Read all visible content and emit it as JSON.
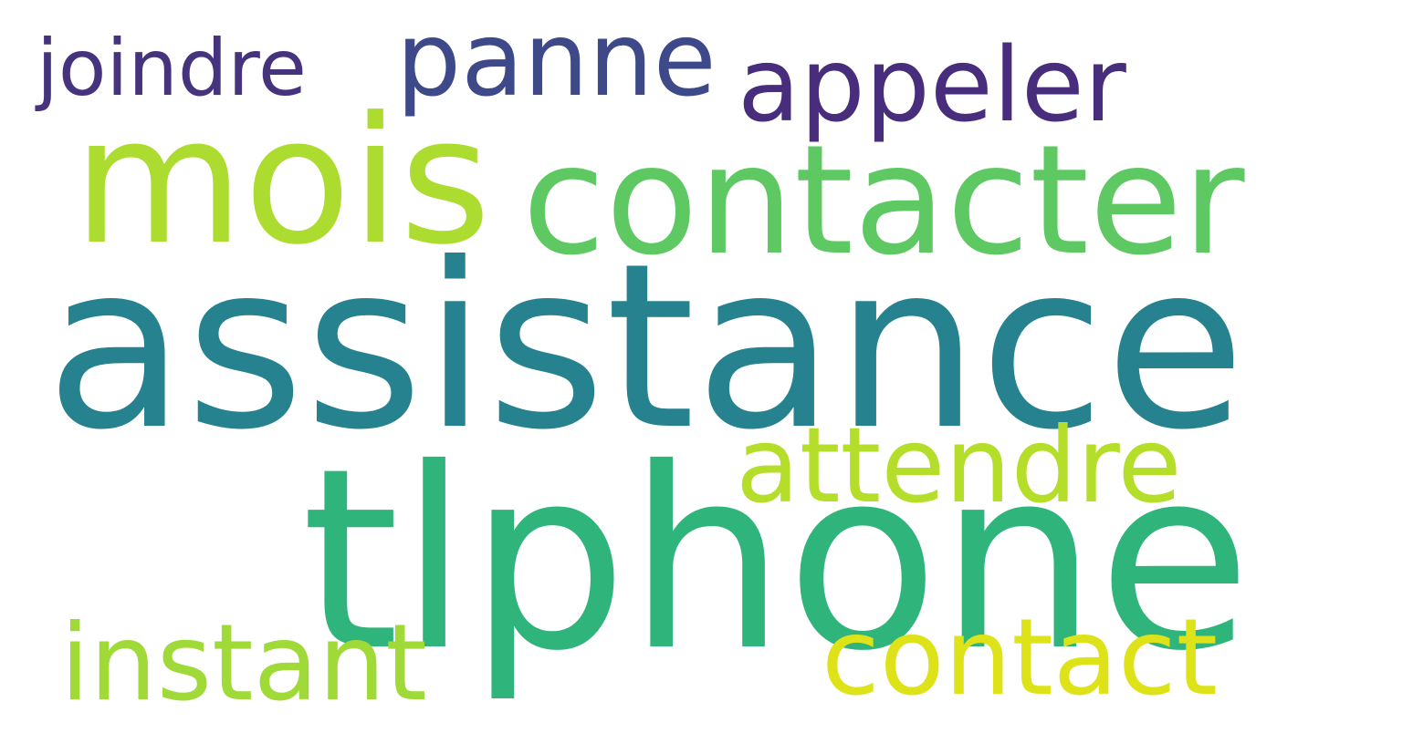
{
  "words": [
    {
      "text": "joindre",
      "color": "#46337e"
    },
    {
      "text": "panne",
      "color": "#3e4989"
    },
    {
      "text": "appeler",
      "color": "#472d7b"
    },
    {
      "text": "mois",
      "color": "#addc30"
    },
    {
      "text": "contacter",
      "color": "#5ec962"
    },
    {
      "text": "assistance",
      "color": "#26828e"
    },
    {
      "text": "attendre",
      "color": "#b5de2b"
    },
    {
      "text": "tlphone",
      "color": "#2fb47c"
    },
    {
      "text": "instant",
      "color": "#a0da39"
    },
    {
      "text": "contact",
      "color": "#dde318"
    }
  ]
}
